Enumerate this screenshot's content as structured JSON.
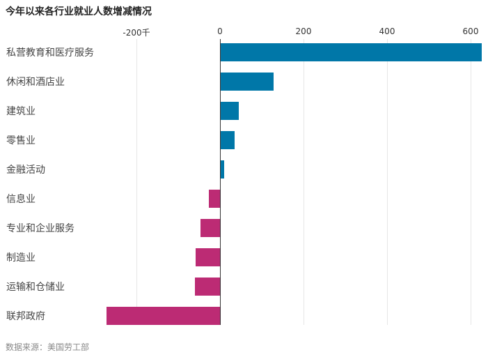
{
  "title": "今年以来各行业就业人数增减情况",
  "source": "数据来源：美国劳工部",
  "colors": {
    "positive": "#0077a8",
    "negative": "#bc2b74"
  },
  "chart_data": {
    "type": "bar",
    "orientation": "horizontal",
    "title": "今年以来各行业就业人数增减情况",
    "xlabel": "",
    "ylabel": "",
    "unit": "千",
    "xlim": [
      -290,
      630
    ],
    "xticks": [
      -200,
      0,
      200,
      400,
      600
    ],
    "xtick_labels": [
      "-200千",
      "0",
      "200",
      "400",
      "600"
    ],
    "grid": true,
    "categories": [
      "私营教育和医疗服务",
      "休闲和酒店业",
      "建筑业",
      "零售业",
      "金融活动",
      "信息业",
      "专业和企业服务",
      "制造业",
      "运输和仓储业",
      "联邦政府"
    ],
    "values": [
      627,
      128,
      45,
      35,
      10,
      -27,
      -47,
      -58,
      -60,
      -272
    ],
    "source": "数据来源：美国劳工部"
  }
}
